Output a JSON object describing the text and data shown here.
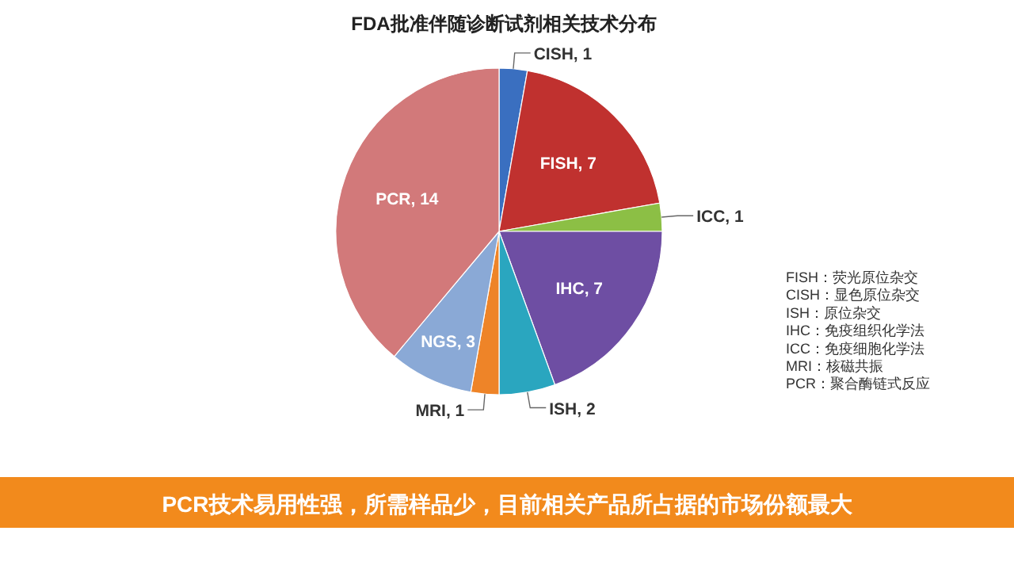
{
  "chart_data": {
    "type": "pie",
    "title": "FDA批准伴随诊断试剂相关技术分布",
    "categories": [
      "CISH, 1",
      "FISH, 7",
      "ICC, 1",
      "IHC, 7",
      "ISH, 2",
      "MRI, 1",
      "NGS, 3",
      "PCR, 14"
    ],
    "values": [
      1,
      7,
      1,
      7,
      2,
      1,
      3,
      14
    ],
    "colors": [
      "#3a6fc0",
      "#c0312f",
      "#8cbf45",
      "#6e4ea3",
      "#2aa6bf",
      "#ee8428",
      "#8aa9d6",
      "#d2797a"
    ],
    "annotations": [
      "FISH：荧光原位杂交",
      "CISH：显色原位杂交",
      "ISH：原位杂交",
      "IHC：免疫组织化学法",
      "ICC：免疫细胞化学法",
      "MRI：核磁共振",
      "PCR：聚合酶链式反应",
      "PCR技术易用性强，所需样品少，目前相关产品所占据的市场份额最大"
    ]
  }
}
